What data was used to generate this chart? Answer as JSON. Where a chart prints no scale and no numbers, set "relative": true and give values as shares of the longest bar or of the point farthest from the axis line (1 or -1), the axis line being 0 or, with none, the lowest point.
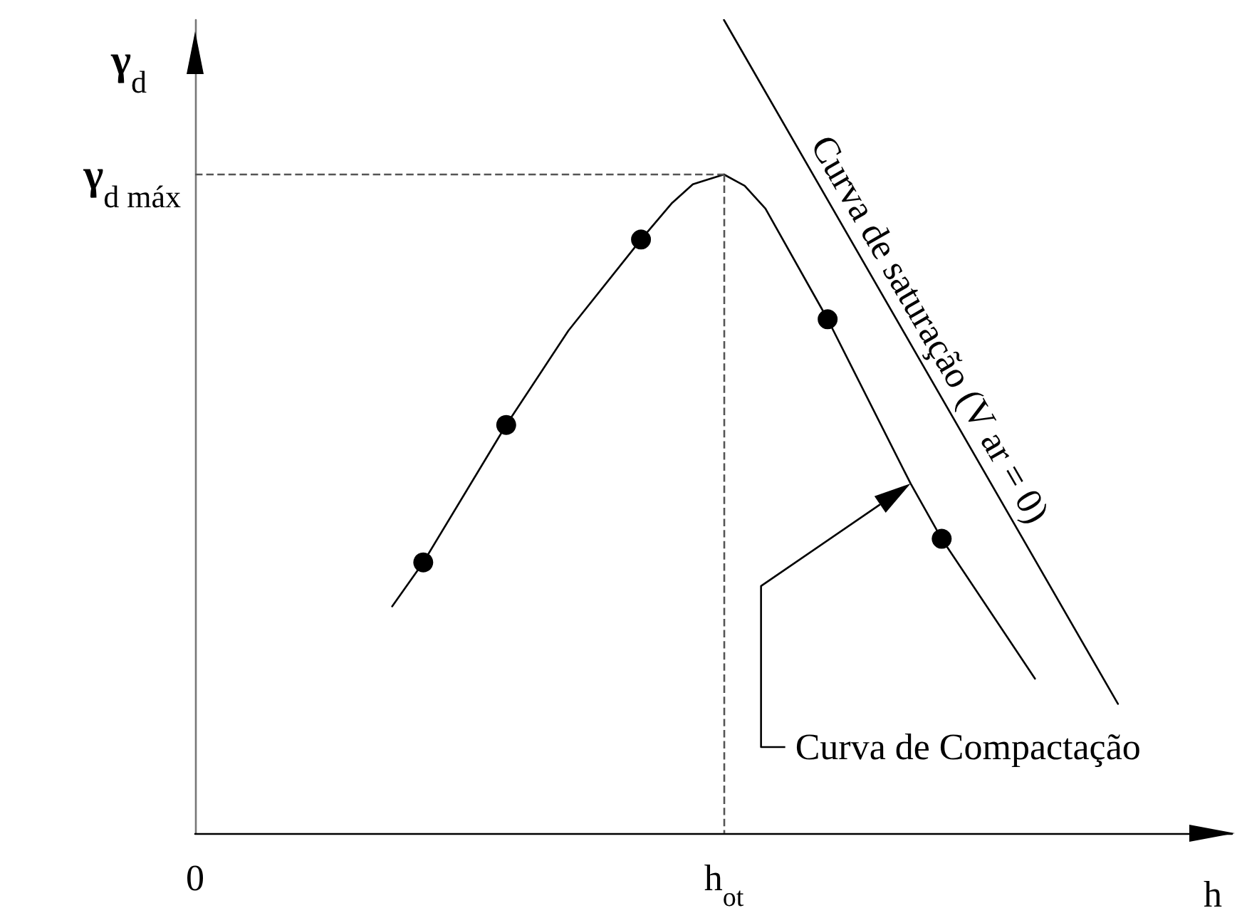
{
  "chart_data": {
    "type": "line",
    "relative": true,
    "xlabel": "h",
    "ylabel": "γ$_{d}$",
    "grid": false,
    "legend": false,
    "line_style": "solid",
    "categories": [
      "0",
      null,
      null,
      null,
      null,
      null,
      null,
      null,
      null,
      null,
      null,
      null,
      null,
      null,
      null,
      null,
      null,
      null,
      null,
      null,
      null,
      null,
      null,
      null,
      null,
      null,
      null,
      null,
      null,
      null,
      null,
      null,
      null,
      null,
      null,
      null,
      null,
      null,
      null,
      null,
      null,
      null,
      null,
      null,
      null,
      null,
      null,
      null,
      null,
      null,
      null,
      "h$_{ot}$",
      null,
      null,
      null,
      null,
      null,
      null,
      null,
      null,
      null,
      null,
      null,
      null,
      null,
      null,
      null,
      null,
      null,
      null,
      null,
      null,
      null,
      null,
      null,
      null,
      null,
      null,
      null,
      null,
      null,
      null,
      null,
      null,
      null,
      null,
      null,
      null,
      null,
      null,
      null,
      null,
      null,
      null,
      null,
      null,
      null,
      null,
      null,
      null,
      null
    ],
    "ref_lines": [
      {
        "axis": "y",
        "value": 0.81,
        "label": "γ$_{d máx}$",
        "color": "#555555",
        "line_style": "dashed"
      },
      {
        "axis": "x",
        "value": "h$_{ot}$",
        "color": "#555555",
        "line_style": "dashed"
      }
    ],
    "series": [
      {
        "name": "Curva de Compactação",
        "color": "#000000",
        "marker": "none",
        "values": [
          null,
          null,
          null,
          null,
          null,
          null,
          null,
          null,
          null,
          null,
          null,
          null,
          null,
          null,
          null,
          null,
          null,
          null,
          null,
          0.279,
          null,
          null,
          0.333,
          null,
          null,
          null,
          null,
          null,
          null,
          null,
          0.502,
          null,
          null,
          null,
          null,
          null,
          0.618,
          null,
          null,
          null,
          null,
          null,
          null,
          0.73,
          null,
          null,
          0.775,
          null,
          0.798,
          null,
          null,
          0.81,
          null,
          0.796,
          null,
          0.768,
          null,
          null,
          null,
          null,
          null,
          0.632,
          null,
          null,
          null,
          null,
          null,
          null,
          null,
          0.43,
          null,
          null,
          0.362,
          null,
          null,
          null,
          null,
          null,
          null,
          null,
          null,
          0.19,
          null,
          null,
          null,
          null,
          null,
          null,
          null,
          null,
          null,
          null,
          null,
          null,
          null,
          null,
          null,
          null,
          null,
          null,
          null
        ]
      },
      {
        "type": "scatter",
        "color": "#000000",
        "marker": "circle",
        "values": [
          null,
          null,
          null,
          null,
          null,
          null,
          null,
          null,
          null,
          null,
          null,
          null,
          null,
          null,
          null,
          null,
          null,
          null,
          null,
          null,
          null,
          null,
          0.333,
          null,
          null,
          null,
          null,
          null,
          null,
          null,
          0.502,
          null,
          null,
          null,
          null,
          null,
          null,
          null,
          null,
          null,
          null,
          null,
          null,
          0.73,
          null,
          null,
          null,
          null,
          null,
          null,
          null,
          null,
          null,
          null,
          null,
          null,
          null,
          null,
          null,
          null,
          null,
          0.632,
          null,
          null,
          null,
          null,
          null,
          null,
          null,
          null,
          null,
          null,
          0.362,
          null,
          null,
          null,
          null,
          null,
          null,
          null,
          null,
          null,
          null,
          null,
          null,
          null,
          null,
          null,
          null,
          null,
          null,
          null,
          null,
          null,
          null,
          null,
          null,
          null,
          null,
          null,
          null
        ]
      },
      {
        "name": "Curva de saturação (V ar = 0)",
        "color": "#000000",
        "marker": "none",
        "values": [
          null,
          null,
          null,
          null,
          null,
          null,
          null,
          null,
          null,
          null,
          null,
          null,
          null,
          null,
          null,
          null,
          null,
          null,
          null,
          null,
          null,
          null,
          null,
          null,
          null,
          null,
          null,
          null,
          null,
          null,
          null,
          null,
          null,
          null,
          null,
          null,
          null,
          null,
          null,
          null,
          null,
          null,
          null,
          null,
          null,
          null,
          null,
          null,
          null,
          null,
          null,
          1,
          null,
          null,
          null,
          null,
          null,
          null,
          null,
          null,
          null,
          null,
          null,
          null,
          null,
          null,
          null,
          null,
          null,
          null,
          null,
          null,
          null,
          null,
          null,
          null,
          null,
          null,
          null,
          null,
          null,
          null,
          null,
          null,
          null,
          null,
          null,
          null,
          null,
          0.159,
          null,
          null,
          null,
          null,
          null,
          null,
          null,
          null,
          null,
          null,
          null
        ]
      }
    ]
  }
}
